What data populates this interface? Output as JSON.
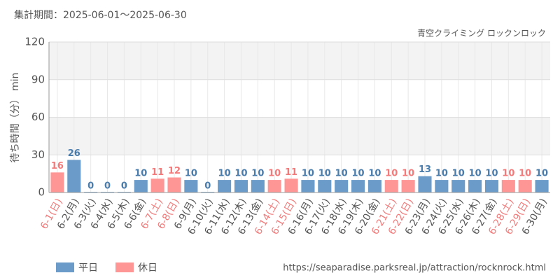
{
  "chart_data": {
    "type": "bar",
    "subtitle": "集計期間：2025-06-01～2025-06-30",
    "title": "青空クライミング ロックンロック",
    "y_label": "待ち時間（分） min",
    "source": "https://seaparadise.parksreal.jp/attraction/rocknrock.html",
    "categories": [
      "6-1(日)",
      "6-2(月)",
      "6-3(火)",
      "6-4(水)",
      "6-5(木)",
      "6-6(金)",
      "6-7(土)",
      "6-8(日)",
      "6-9(月)",
      "6-10(火)",
      "6-11(水)",
      "6-12(木)",
      "6-13(金)",
      "6-14(土)",
      "6-15(日)",
      "6-16(月)",
      "6-17(火)",
      "6-18(水)",
      "6-19(木)",
      "6-20(金)",
      "6-21(土)",
      "6-22(日)",
      "6-23(月)",
      "6-24(火)",
      "6-25(水)",
      "6-26(木)",
      "6-27(金)",
      "6-28(土)",
      "6-29(日)",
      "6-30(月)"
    ],
    "series": [
      {
        "name": "平日",
        "color": "#6b9bc8",
        "values": [
          null,
          26,
          0,
          0,
          0,
          10,
          null,
          null,
          10,
          0,
          10,
          10,
          10,
          null,
          null,
          10,
          10,
          10,
          10,
          10,
          null,
          null,
          13,
          10,
          10,
          10,
          10,
          null,
          null,
          10
        ]
      },
      {
        "name": "休日",
        "color": "#ff9696",
        "values": [
          16,
          null,
          null,
          null,
          null,
          null,
          11,
          12,
          null,
          null,
          null,
          null,
          null,
          10,
          11,
          null,
          null,
          null,
          null,
          null,
          10,
          10,
          null,
          null,
          null,
          null,
          null,
          10,
          10,
          null
        ]
      }
    ],
    "ylim": [
      0,
      120
    ],
    "yticks": [
      0,
      30,
      60,
      90,
      120
    ],
    "grid": true
  }
}
